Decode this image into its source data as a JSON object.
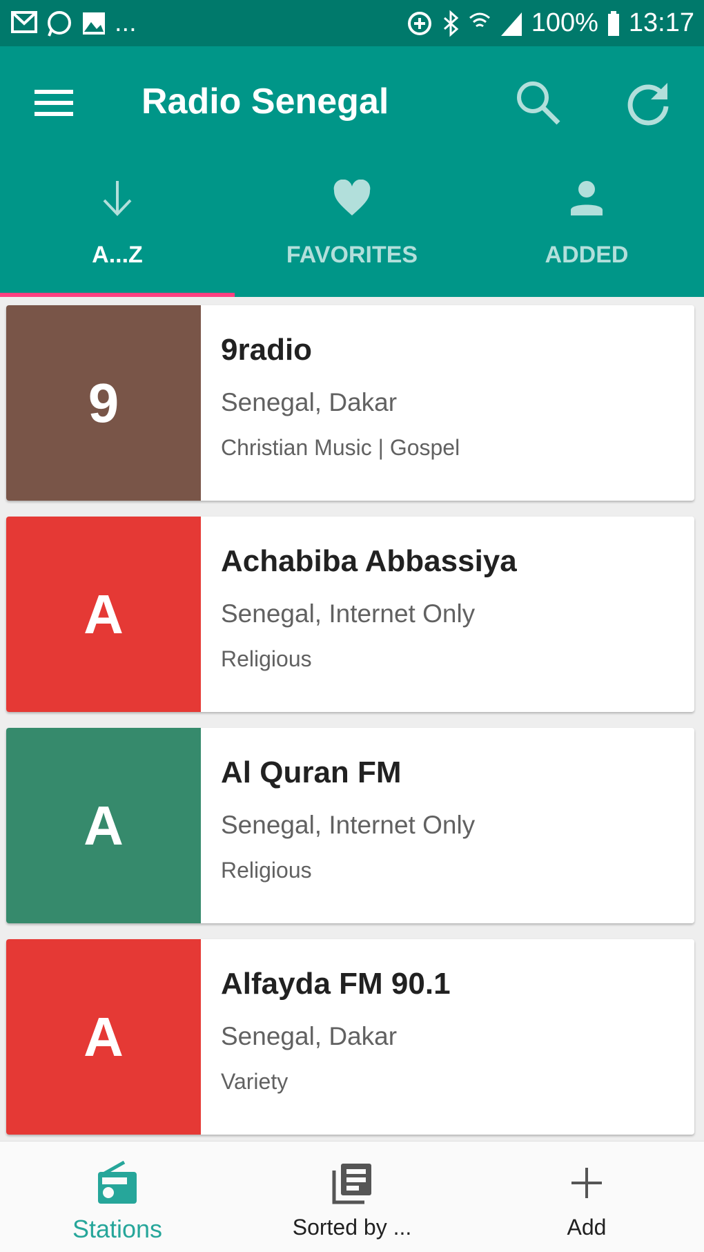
{
  "status_bar": {
    "battery": "100%",
    "time": "13:17",
    "overflow": "...",
    "icons": [
      "gmail-icon",
      "whatsapp-icon",
      "gallery-icon",
      "data-saver-icon",
      "bluetooth-icon",
      "wifi-icon",
      "signal-icon",
      "battery-icon"
    ]
  },
  "toolbar": {
    "title": "Radio Senegal",
    "icons": [
      "menu-icon",
      "search-icon",
      "refresh-icon"
    ]
  },
  "tabs": [
    {
      "label": "A...Z",
      "icon": "arrow-down-icon",
      "active": true
    },
    {
      "label": "FAVORITES",
      "icon": "heart-icon"
    },
    {
      "label": "ADDED",
      "icon": "person-icon"
    }
  ],
  "stations": [
    {
      "letter": "9",
      "name": "9radio",
      "location": "Senegal, Dakar",
      "genre": "Christian Music | Gospel",
      "color": "#795548"
    },
    {
      "letter": "A",
      "name": "Achabiba Abbassiya",
      "location": "Senegal, Internet Only",
      "genre": "Religious",
      "color": "#e53935"
    },
    {
      "letter": "A",
      "name": "Al Quran FM",
      "location": "Senegal, Internet Only",
      "genre": "Religious",
      "color": "#368a6c"
    },
    {
      "letter": "A",
      "name": "Alfayda FM 90.1",
      "location": "Senegal, Dakar",
      "genre": "Variety",
      "color": "#e53935"
    }
  ],
  "bottom_nav": [
    {
      "label": "Stations",
      "icon": "radio-icon",
      "active": true
    },
    {
      "label": "Sorted by ...",
      "icon": "library-icon"
    },
    {
      "label": "Add",
      "icon": "plus-icon"
    }
  ],
  "colors": {
    "primary": "#009688",
    "status": "#00796b",
    "accent": "#ff4081"
  }
}
